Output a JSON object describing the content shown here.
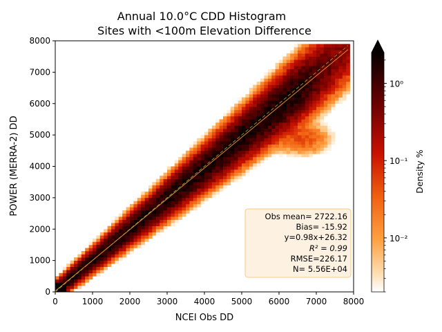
{
  "chart_data": {
    "type": "heatmap",
    "title_lines": [
      "Annual 10.0°C CDD Histogram",
      "Sites with <100m Elevation Difference"
    ],
    "xlabel": "NCEI Obs DD",
    "ylabel": "POWER (MERRA-2) DD",
    "xlim": [
      0,
      8000
    ],
    "ylim": [
      0,
      8000
    ],
    "x_ticks": [
      0,
      1000,
      2000,
      3000,
      4000,
      5000,
      6000,
      7000,
      8000
    ],
    "x_tick_labels": [
      "0",
      "1000",
      "2000",
      "3000",
      "4000",
      "5000",
      "6000",
      "7000",
      "8000"
    ],
    "y_ticks": [
      0,
      1000,
      2000,
      3000,
      4000,
      5000,
      6000,
      7000,
      8000
    ],
    "y_tick_labels": [
      "0",
      "1000",
      "2000",
      "3000",
      "4000",
      "5000",
      "6000",
      "7000",
      "8000"
    ],
    "bin_size": 100,
    "fit": {
      "slope": 0.98,
      "intercept": 26.32
    },
    "one_to_one_line": true,
    "stats_box": {
      "lines": [
        "Obs mean= 2722.16",
        "Bias= -15.92",
        "y=0.98x+26.32",
        "R² = 0.99",
        "RMSE=226.17",
        "N= 5.56E+04"
      ],
      "placement": "lower-right"
    },
    "colorbar": {
      "label": "Density %",
      "scale": "log",
      "range": [
        0.002,
        2.5
      ],
      "colormap": "gist_heat_r",
      "extend": "max",
      "tick_values": [
        0.01,
        0.1,
        1
      ],
      "tick_labels": [
        "10⁻²",
        "10⁻¹",
        "10⁰"
      ]
    },
    "density_regions": [
      {
        "name": "main diagonal band",
        "x_range": [
          0,
          7800
        ],
        "relation": "y ~ 0.98x + 26",
        "peak_density_pct": 2.0
      },
      {
        "name": "secondary cluster",
        "x_center": 6600,
        "y_center": 4900,
        "peak_density_pct": 0.05
      }
    ]
  },
  "colors": {
    "fit_line": "#e08a2a",
    "one_to_one_line": "#7f9e3f",
    "stats_box_fill": "#fdf1e2",
    "stats_box_edge": "#f4c98a"
  }
}
